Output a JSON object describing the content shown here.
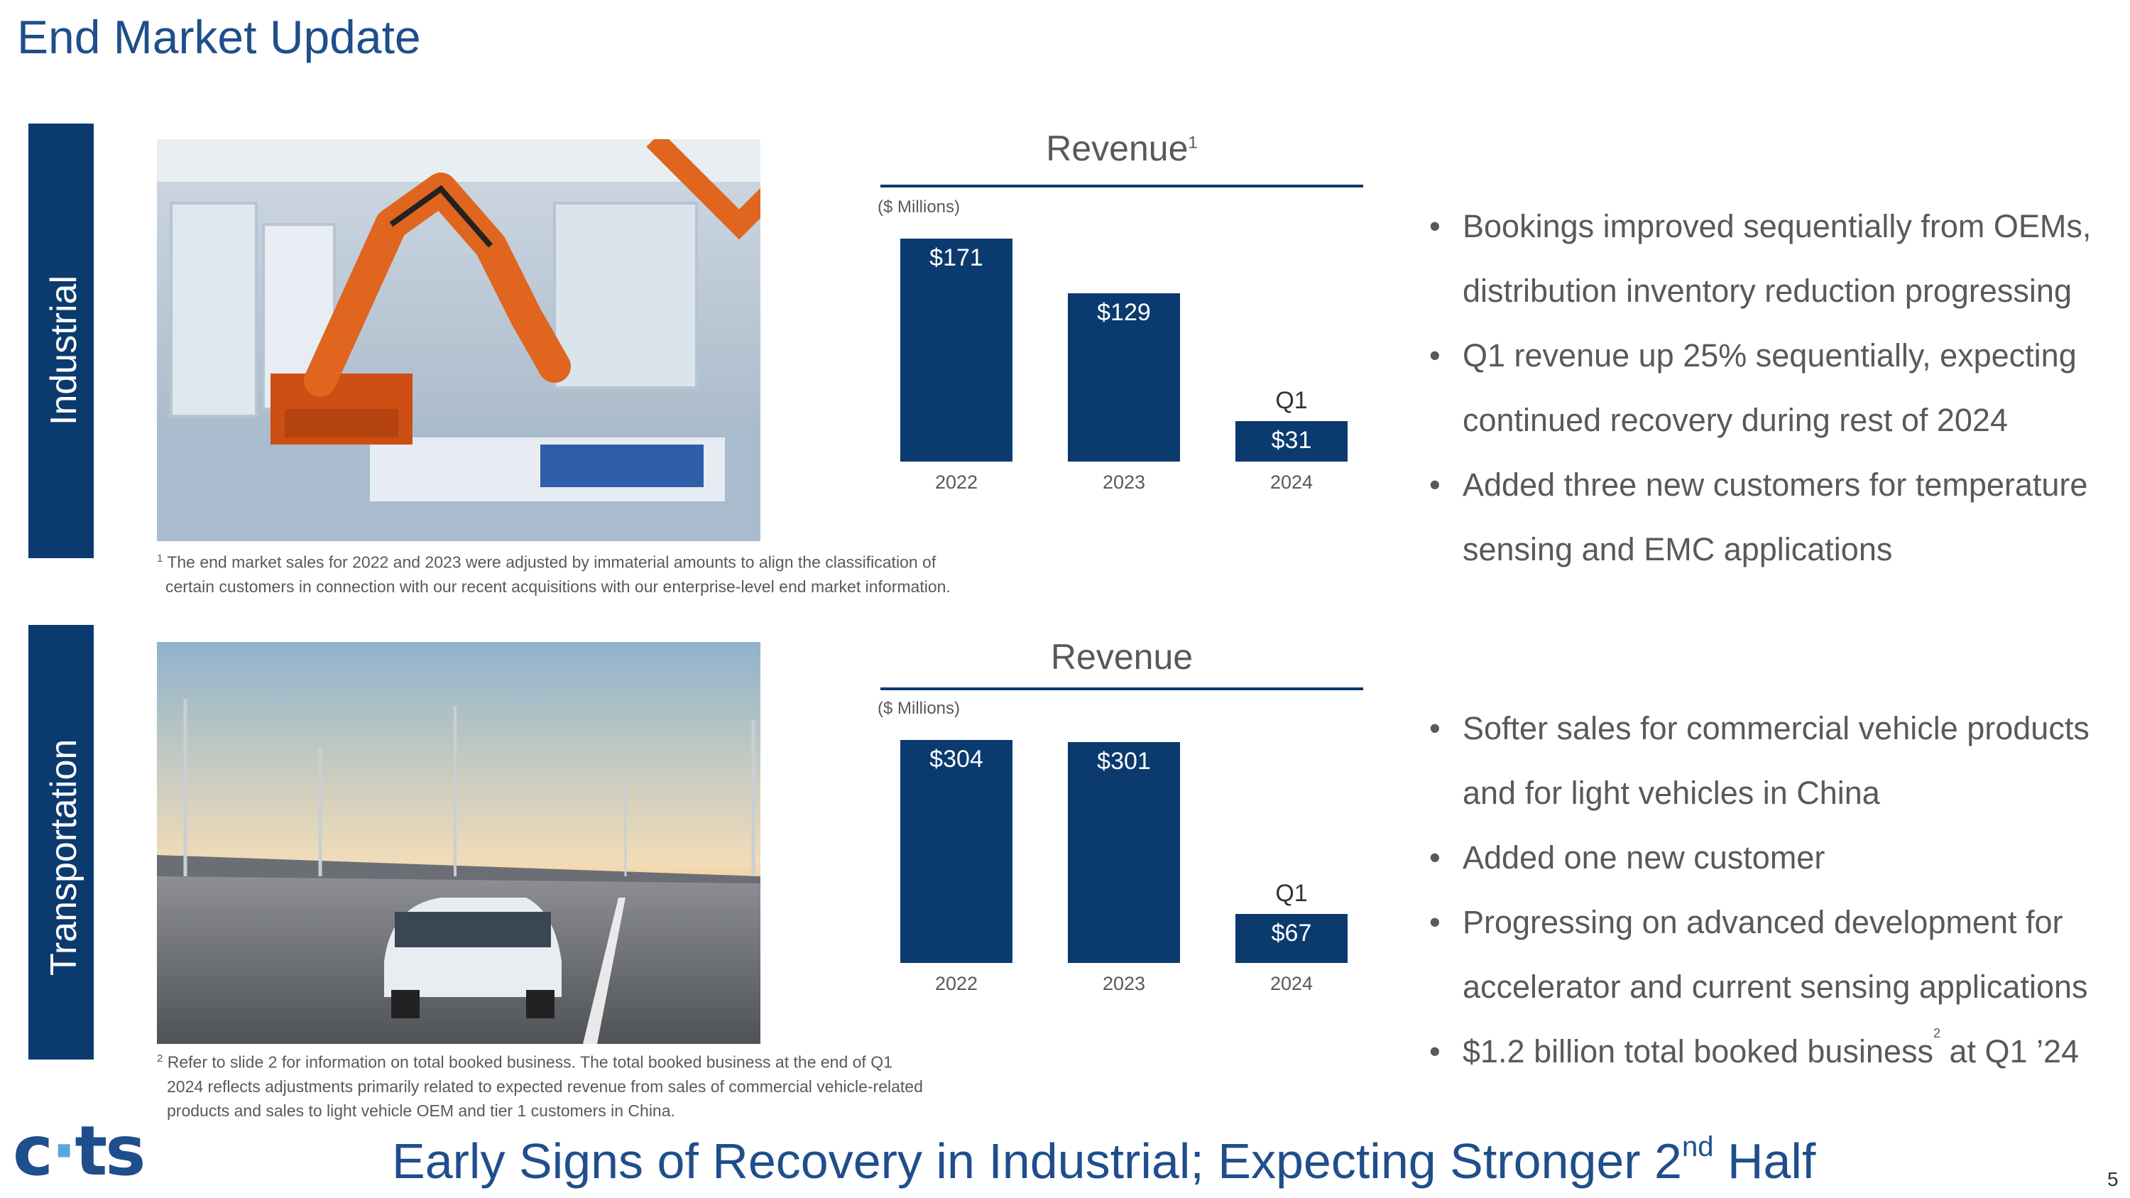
{
  "page": {
    "title": "End Market Update",
    "page_number": "5"
  },
  "logo": {
    "text_c": "c",
    "text_ts": "ts"
  },
  "tagline": {
    "prefix": "Early Signs of Recovery in Industrial; Expecting Stronger 2",
    "sup": "nd",
    "suffix": " Half"
  },
  "industrial": {
    "section_label": "Industrial",
    "image_icon": "robot-arm-photo",
    "footnote_mark": "1",
    "footnote_line1": "The end market sales for 2022 and 2023 were adjusted by immaterial amounts to align the classification of",
    "footnote_line2": "certain customers in connection with our recent acquisitions with our enterprise-level end market information.",
    "bullets": [
      {
        "line1": "Bookings improved sequentially from OEMs,",
        "line2": "distribution inventory reduction progressing"
      },
      {
        "line1": "Q1 revenue up 25% sequentially, expecting",
        "line2": "continued recovery during rest of 2024"
      },
      {
        "line1": "Added three new customers for temperature",
        "line2": "sensing and EMC applications"
      }
    ]
  },
  "transportation": {
    "section_label": "Transportation",
    "image_icon": "car-highway-photo",
    "footnote_mark": "2",
    "footnote_line1": "Refer to slide 2 for information on total booked business. The total booked business at the end of Q1",
    "footnote_line2": "2024 reflects adjustments primarily related to expected revenue from sales of commercial vehicle-related",
    "footnote_line3": "products and sales to light vehicle OEM and tier 1 customers in China.",
    "bullets": [
      {
        "line1": "Softer sales for commercial vehicle products",
        "line2": "and for light vehicles in China"
      },
      {
        "line1": "Added one new customer"
      },
      {
        "line1": "Progressing on advanced development for",
        "line2": "accelerator and current sensing applications"
      },
      {
        "line1": "$1.2 billion total booked business",
        "sup": "2",
        "after": " at Q1 ’24"
      }
    ]
  },
  "chart_data": [
    {
      "type": "bar",
      "title": "Revenue",
      "title_sup": "1",
      "units_label": "($ Millions)",
      "categories": [
        "2022",
        "2023",
        "2024"
      ],
      "values": [
        171,
        129,
        31
      ],
      "value_labels": [
        "$171",
        "$129",
        "$31"
      ],
      "period_labels": [
        "",
        "",
        "Q1"
      ],
      "ylim": [
        0,
        171
      ],
      "color": "#0b3a6e"
    },
    {
      "type": "bar",
      "title": "Revenue",
      "units_label": "($ Millions)",
      "categories": [
        "2022",
        "2023",
        "2024"
      ],
      "values": [
        304,
        301,
        67
      ],
      "value_labels": [
        "$304",
        "$301",
        "$67"
      ],
      "period_labels": [
        "",
        "",
        "Q1"
      ],
      "ylim": [
        0,
        304
      ],
      "color": "#0b3a6e"
    }
  ]
}
